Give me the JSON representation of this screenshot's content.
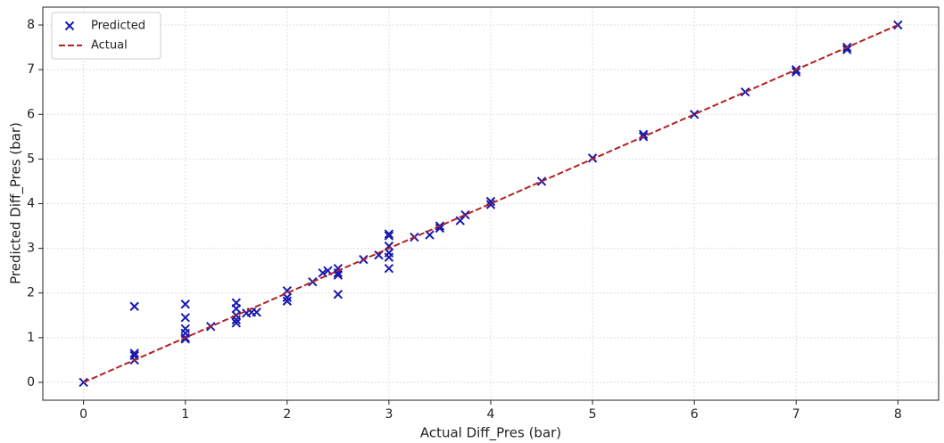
{
  "chart_data": {
    "type": "scatter",
    "x_label": "Actual Diff_Pres (bar)",
    "y_label": "Predicted Diff_Pres (bar)",
    "series": [
      {
        "name": "Predicted",
        "kind": "scatter",
        "color": "#1a1ab0",
        "x": [
          0,
          0.5,
          0.5,
          0.5,
          0.5,
          1,
          1,
          1,
          1,
          1,
          1,
          1.25,
          1.5,
          1.5,
          1.5,
          1.5,
          1.5,
          1.6,
          1.65,
          1.7,
          2,
          2,
          2,
          2.25,
          2.35,
          2.4,
          2.5,
          2.5,
          2.5,
          2.5,
          2.75,
          2.9,
          3,
          3,
          3,
          3,
          3,
          3,
          3.25,
          3.4,
          3.5,
          3.5,
          3.7,
          3.75,
          4,
          4,
          4.5,
          5,
          5.5,
          5.5,
          6,
          6.5,
          7,
          7,
          7.5,
          7.5,
          8
        ],
        "values": [
          0,
          1.7,
          0.65,
          0.6,
          0.5,
          1.75,
          1.45,
          1.2,
          1.1,
          1.0,
          0.97,
          1.25,
          1.78,
          1.65,
          1.5,
          1.4,
          1.33,
          1.55,
          1.57,
          1.57,
          2.05,
          1.9,
          1.82,
          2.25,
          2.45,
          2.5,
          2.55,
          2.45,
          2.4,
          1.97,
          2.75,
          2.85,
          3.32,
          3.28,
          3.05,
          2.9,
          2.8,
          2.55,
          3.25,
          3.3,
          3.5,
          3.45,
          3.62,
          3.75,
          4.05,
          3.98,
          4.5,
          5.02,
          5.55,
          5.5,
          6,
          6.5,
          7,
          6.95,
          7.5,
          7.45,
          8
        ]
      },
      {
        "name": "Actual",
        "kind": "line",
        "color": "#b22222",
        "dash": true,
        "x": [
          0,
          8
        ],
        "values": [
          0,
          8
        ]
      }
    ],
    "xlim": [
      -0.4,
      8.4
    ],
    "ylim": [
      -0.4,
      8.4
    ],
    "xticks": [
      0,
      1,
      2,
      3,
      4,
      5,
      6,
      7,
      8
    ],
    "yticks": [
      0,
      1,
      2,
      3,
      4,
      5,
      6,
      7,
      8
    ],
    "grid": true,
    "legend": "upper-left"
  }
}
